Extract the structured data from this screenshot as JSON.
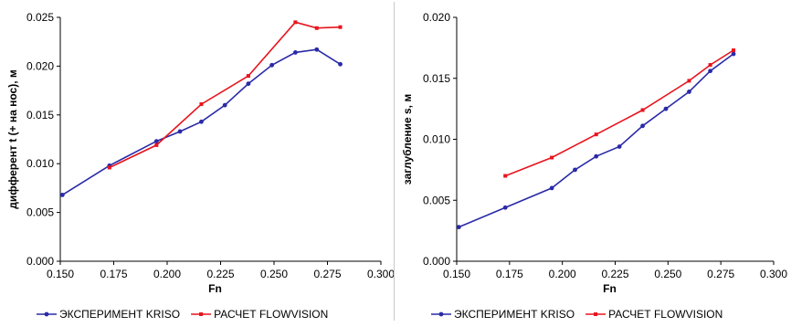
{
  "chart_data": [
    {
      "type": "line",
      "xlabel": "Fn",
      "ylabel": "дифферент t (+ на нос), м",
      "xlim": [
        0.15,
        0.3
      ],
      "ylim": [
        0.0,
        0.025
      ],
      "x_ticks": [
        "0.150",
        "0.175",
        "0.200",
        "0.225",
        "0.250",
        "0.275",
        "0.300"
      ],
      "y_ticks": [
        "0.000",
        "0.005",
        "0.010",
        "0.015",
        "0.020",
        "0.025"
      ],
      "legend_position": "bottom",
      "grid": false,
      "series": [
        {
          "name": "ЭКСПЕРИМЕНТ KRISO",
          "color": "#2a2aa8",
          "marker": "circle",
          "x": [
            0.151,
            0.173,
            0.195,
            0.206,
            0.216,
            0.227,
            0.238,
            0.249,
            0.26,
            0.27,
            0.281
          ],
          "y": [
            0.0068,
            0.0098,
            0.0123,
            0.0133,
            0.0143,
            0.016,
            0.0182,
            0.0201,
            0.0214,
            0.0217,
            0.0202
          ]
        },
        {
          "name": "РАСЧЕТ FLOWVISION",
          "color": "#e8141e",
          "marker": "square",
          "x": [
            0.173,
            0.195,
            0.216,
            0.238,
            0.26,
            0.27,
            0.281
          ],
          "y": [
            0.0096,
            0.0119,
            0.0161,
            0.019,
            0.0245,
            0.0239,
            0.024
          ]
        }
      ]
    },
    {
      "type": "line",
      "xlabel": "Fn",
      "ylabel": "заглубление s, м",
      "xlim": [
        0.15,
        0.3
      ],
      "ylim": [
        0.0,
        0.02
      ],
      "x_ticks": [
        "0.150",
        "0.175",
        "0.200",
        "0.225",
        "0.250",
        "0.275",
        "0.300"
      ],
      "y_ticks": [
        "0.000",
        "0.005",
        "0.010",
        "0.015",
        "0.020"
      ],
      "legend_position": "bottom",
      "grid": false,
      "series": [
        {
          "name": "ЭКСПЕРИМЕНТ KRISO",
          "color": "#2a2aa8",
          "marker": "circle",
          "x": [
            0.151,
            0.173,
            0.195,
            0.206,
            0.216,
            0.227,
            0.238,
            0.249,
            0.26,
            0.27,
            0.281
          ],
          "y": [
            0.0028,
            0.0044,
            0.006,
            0.0075,
            0.0086,
            0.0094,
            0.0111,
            0.0125,
            0.0139,
            0.0156,
            0.017
          ]
        },
        {
          "name": "РАСЧЕТ FLOWVISION",
          "color": "#e8141e",
          "marker": "square",
          "x": [
            0.173,
            0.195,
            0.216,
            0.238,
            0.26,
            0.27,
            0.281
          ],
          "y": [
            0.007,
            0.0085,
            0.0104,
            0.0124,
            0.0148,
            0.0161,
            0.0173
          ]
        }
      ]
    }
  ]
}
